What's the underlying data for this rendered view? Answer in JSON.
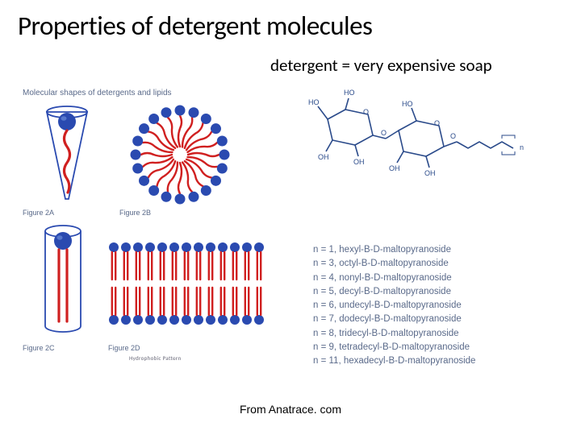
{
  "title": "Properties of detergent molecules",
  "subtitle": "detergent = very expensive soap",
  "leftPanel": {
    "header": "Molecular shapes of detergents and lipids",
    "figA": "Figure 2A",
    "figB": "Figure 2B",
    "figC": "Figure 2C",
    "figD": "Figure 2D",
    "hydrophobic": "Hydrophobic Pattern"
  },
  "chem": {
    "labels": [
      "HO",
      "HO",
      "OH",
      "OH",
      "HO",
      "O",
      "O",
      "O",
      "OH",
      "OH",
      "O",
      "n"
    ]
  },
  "listItems": [
    "n = 1, hexyl-B-D-maltopyranoside",
    "n = 3, octyl-B-D-maltopyranoside",
    "n = 4, nonyl-B-D-maltopyranoside",
    "n = 5, decyl-B-D-maltopyranoside",
    "n = 6, undecyl-B-D-maltopyranoside",
    "n = 7, dodecyl-B-D-maltopyranoside",
    "n = 8, tridecyl-B-D-maltopyranoside",
    "n = 9, tetradecyl-B-D-maltopyranoside",
    "n = 11, hexadecyl-B-D-maltopyranoside"
  ],
  "attribution": "From Anatrace. com",
  "colors": {
    "blue": "#2a4ab0",
    "red": "#d02020",
    "grayText": "#5a6a8a",
    "chemLine": "#2a4a8a"
  }
}
